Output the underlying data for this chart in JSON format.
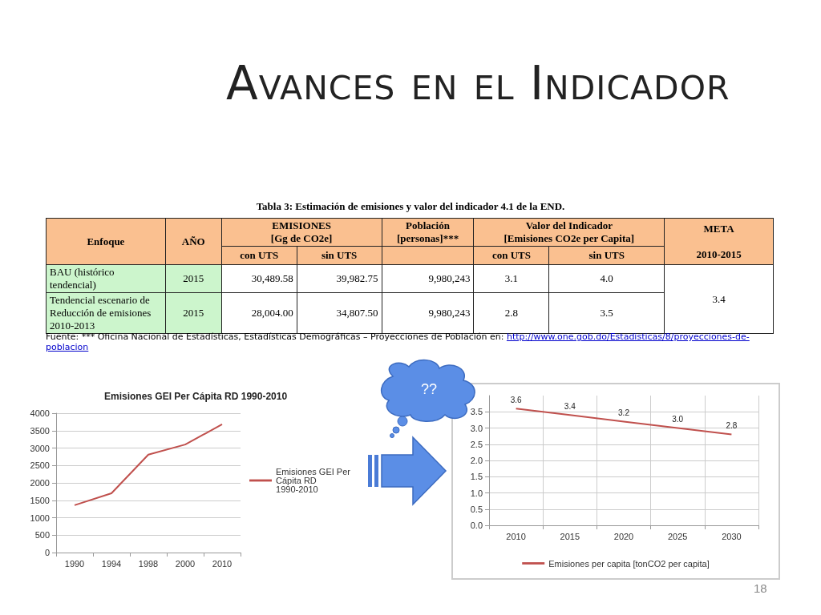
{
  "chart_data": [
    {
      "type": "other",
      "title": "Avances en el Indicador",
      "subtitle": "Tabla 3: Estimación de emisiones y valor del indicador 4.1 de la END.",
      "annotations": [
        "Enfoque",
        "AÑO",
        "EMISIONES",
        "[Gg de CO2e]",
        "Población",
        "[personas]***",
        "Valor del Indicador",
        "[Emisiones CO2e per Capita]",
        "META",
        "2010-2015",
        "con UTS",
        "sin UTS",
        "con UTS",
        "sin UTS",
        "BAU (histórico tendencial)",
        "2015",
        "30,489.58",
        "39,982.75",
        "9,980,243",
        "3.1",
        "4.0",
        "3.4",
        "Tendencial escenario de Reducción de emisiones 2010-2013",
        "2015",
        "28,004.00",
        "34,807.50",
        "9,980,243",
        "2.8",
        "3.5",
        "Fuente: *** Oficina Nacional de Estadísticas, Estadísticas Demográficas – Proyecciones de Población en: ",
        "http://www.one.gob.do/Estadisticas/8/proyecciones-de-poblacion",
        "??",
        "18"
      ]
    },
    {
      "type": "line",
      "title": "Emisiones GEI Per Cápita RD 1990-2010",
      "categories": [
        "1990",
        "1994",
        "1998",
        "2000",
        "2010"
      ],
      "series": [
        {
          "name": "Emisiones GEI Per Cápita RD 1990-2010",
          "color": "#c0504d",
          "values": [
            1360,
            1700,
            2810,
            3100,
            3680
          ]
        }
      ],
      "ylim": [
        0,
        4000
      ],
      "yticks": [
        0,
        500,
        1000,
        1500,
        2000,
        2500,
        3000,
        3500,
        4000
      ],
      "grid": "y",
      "legend": "right",
      "marker": "none"
    },
    {
      "type": "line",
      "categories": [
        "2010",
        "2015",
        "2020",
        "2025",
        "2030"
      ],
      "series": [
        {
          "name": "Emisiones per capita [tonCO2 per capita]",
          "color": "#c0504d",
          "values": [
            3.6,
            3.4,
            3.2,
            3.0,
            2.8
          ],
          "value_labels": [
            "3.6",
            "3.4",
            "3.2",
            "3.0",
            "2.8"
          ]
        }
      ],
      "ylim": [
        0,
        4
      ],
      "yticks": [
        {
          "value": 0,
          "label": "0.0"
        },
        0.5,
        {
          "value": 1,
          "label": "1.0"
        },
        1.5,
        {
          "value": 2,
          "label": "2.0"
        },
        2.5,
        {
          "value": 3,
          "label": "3.0"
        },
        3.5
      ],
      "grid": true,
      "legend": "bottom",
      "marker": "none"
    }
  ]
}
